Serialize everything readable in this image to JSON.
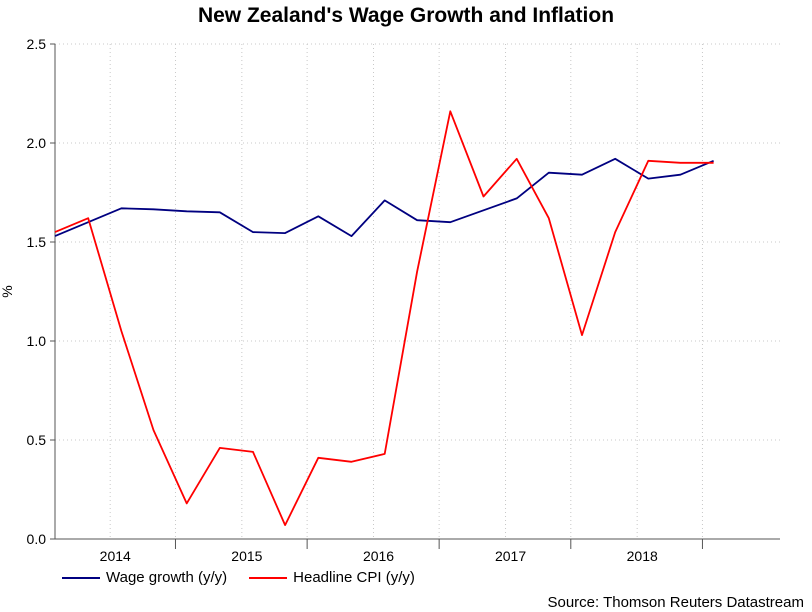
{
  "chart_data": {
    "type": "line",
    "title": "New Zealand's Wage Growth and Inflation",
    "ylabel": "%",
    "xlabel": "",
    "ylim": [
      0.0,
      2.5
    ],
    "yticks": [
      "0.0",
      "0.5",
      "1.0",
      "1.5",
      "2.0",
      "2.5"
    ],
    "xlim": [
      "2013-08-01",
      "2019-02-01"
    ],
    "year_labels": [
      "2014",
      "2015",
      "2016",
      "2017",
      "2018"
    ],
    "year_label_dates": [
      "2014-01-15",
      "2015-01-15",
      "2016-01-15",
      "2017-01-15",
      "2018-01-15"
    ],
    "year_boundaries": [
      "2013-07-01",
      "2014-07-01",
      "2015-07-01",
      "2016-07-01",
      "2017-07-01",
      "2018-07-01"
    ],
    "vertical_grid_dates": [
      "2014-01-01",
      "2014-07-01",
      "2015-01-01",
      "2015-07-01",
      "2016-01-01",
      "2016-07-01",
      "2017-01-01",
      "2017-07-01",
      "2018-01-01",
      "2018-07-01"
    ],
    "grid": true,
    "legend_position": "bottom-left",
    "series": [
      {
        "name": "Wage growth (y/y)",
        "color": "#000080",
        "x": [
          "2013-08-01",
          "2013-11-01",
          "2014-02-01",
          "2014-05-01",
          "2014-08-01",
          "2014-11-01",
          "2015-02-01",
          "2015-05-01",
          "2015-08-01",
          "2015-11-01",
          "2016-02-01",
          "2016-05-01",
          "2016-08-01",
          "2017-02-01",
          "2017-05-01",
          "2017-08-01",
          "2017-11-01",
          "2018-02-01",
          "2018-05-01",
          "2018-08-01"
        ],
        "values": [
          1.53,
          1.6,
          1.67,
          1.665,
          1.655,
          1.65,
          1.55,
          1.545,
          1.63,
          1.53,
          1.71,
          1.61,
          1.6,
          1.72,
          1.85,
          1.84,
          1.92,
          1.82,
          1.84,
          1.91
        ]
      },
      {
        "name": "Headline CPI (y/y)",
        "color": "#ff0000",
        "x": [
          "2013-08-01",
          "2013-11-01",
          "2014-02-01",
          "2014-05-01",
          "2014-08-01",
          "2014-11-01",
          "2015-02-01",
          "2015-05-01",
          "2015-08-01",
          "2015-11-01",
          "2016-02-01",
          "2016-05-01",
          "2016-08-01",
          "2016-11-01",
          "2017-02-01",
          "2017-05-01",
          "2017-08-01",
          "2017-11-01",
          "2018-02-01",
          "2018-05-01",
          "2018-08-01"
        ],
        "values": [
          1.55,
          1.62,
          1.05,
          0.55,
          0.18,
          0.46,
          0.44,
          0.07,
          0.41,
          0.39,
          0.43,
          1.35,
          2.16,
          1.73,
          1.92,
          1.62,
          1.03,
          1.55,
          1.91,
          1.9,
          1.9
        ]
      }
    ]
  },
  "legend": {
    "items": [
      {
        "label": "Wage growth (y/y)",
        "color": "#000080"
      },
      {
        "label": "Headline CPI (y/y)",
        "color": "#ff0000"
      }
    ]
  },
  "source": "Source: Thomson Reuters Datastream"
}
